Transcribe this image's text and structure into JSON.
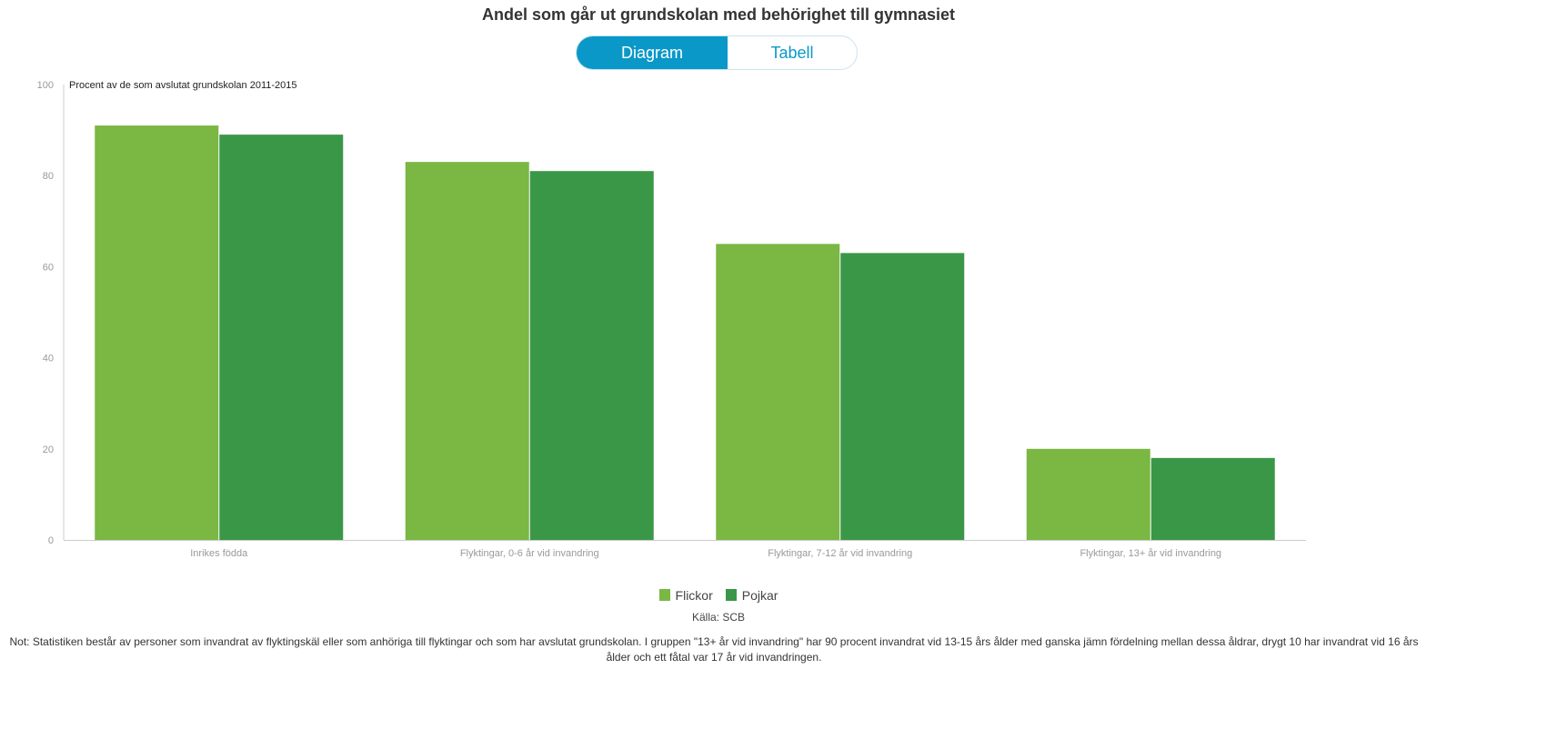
{
  "title": "Andel som går ut grundskolan med behörighet till gymnasiet",
  "toggle": {
    "diagram": "Diagram",
    "table": "Tabell",
    "active": "Diagram"
  },
  "source": "Källa: SCB",
  "note": "Not: Statistiken består av personer som invandrat av flyktingskäl eller som anhöriga till flyktingar och som har avslutat grundskolan. I gruppen \"13+ år vid invandring\" har 90 procent invandrat vid 13-15 års ålder med ganska jämn fördelning mellan dessa åldrar, drygt 10 har invandrat vid 16 års ålder och ett fåtal var 17 år vid invandringen.",
  "chart_data": {
    "type": "bar",
    "title": "Andel som går ut grundskolan med behörighet till gymnasiet",
    "ylabel": "Procent av de som avslutat grundskolan 2011-2015",
    "xlabel": "",
    "ylim": [
      0,
      100
    ],
    "yticks": [
      "0",
      "20",
      "40",
      "60",
      "80",
      "100"
    ],
    "grid": false,
    "legend": "bottom-center",
    "categories": [
      "Inrikes födda",
      "Flyktingar, 0-6 år vid invandring",
      "Flyktingar, 7-12 år vid invandring",
      "Flyktingar, 13+ år vid invandring"
    ],
    "series": [
      {
        "name": "Flickor",
        "color": "#7ab743",
        "values": [
          91,
          83,
          65,
          20
        ]
      },
      {
        "name": "Pojkar",
        "color": "#3a9748",
        "values": [
          89,
          81,
          63,
          18
        ]
      }
    ]
  }
}
